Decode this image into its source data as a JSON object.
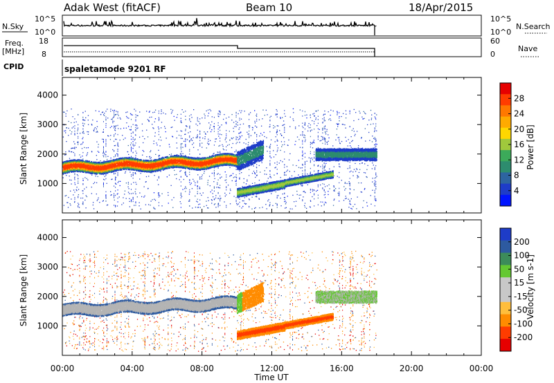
{
  "header": {
    "site": "Adak West (fitACF)",
    "beam": "Beam 10",
    "date": "18/Apr/2015"
  },
  "panels": {
    "nsky": {
      "label": "N.Sky",
      "ticks": [
        "10^5",
        "10^0"
      ],
      "right_label": "N.Search",
      "right_ticks": [
        "10^5",
        "10^0"
      ]
    },
    "freq": {
      "label_line1": "Freq.",
      "label_line2": "[MHz]",
      "ticks": [
        "18",
        "8"
      ],
      "right_label": "Nave",
      "right_ticks": [
        "60",
        "0"
      ]
    },
    "cpid": {
      "label": "CPID",
      "value": "spaletamode 9201 RF"
    }
  },
  "colors": {
    "power_scale": [
      "#0014ff",
      "#1e3cc8",
      "#2d64a0",
      "#2d8c6e",
      "#3caa5a",
      "#a0c83c",
      "#ffd700",
      "#ffaa00",
      "#ff7800",
      "#ff3c00",
      "#e60000"
    ],
    "velocity_scale": [
      "#e60000",
      "#ff3c00",
      "#ff8c00",
      "#ffbe3c",
      "#c8c8c8",
      "#c8c8c8",
      "#64c832",
      "#3c8c5a",
      "#2d5aa0",
      "#1e3cc8"
    ],
    "ground_scatter": "#b4b4b4"
  },
  "chart_data": [
    {
      "type": "heatmap",
      "name": "power",
      "ylabel": "Slant Range [km]",
      "yticks": [
        "1000",
        "2000",
        "3000",
        "4000"
      ],
      "ylim": [
        0,
        4600
      ],
      "colorbar": {
        "label": "Power [dB]",
        "ticks": [
          "4",
          "8",
          "12",
          "16",
          "20",
          "24",
          "28"
        ]
      },
      "bands": [
        {
          "t_start": 0.0,
          "t_end": 10.0,
          "r_low": 1350,
          "r_high": 1750,
          "value": 22
        },
        {
          "t_start": 10.0,
          "t_end": 11.5,
          "r_low": 1450,
          "r_high": 2100,
          "value": 8
        },
        {
          "t_start": 10.0,
          "t_end": 15.5,
          "r_low": 650,
          "r_high": 1200,
          "value": 14
        },
        {
          "t_start": 14.5,
          "t_end": 18.0,
          "r_low": 1800,
          "r_high": 2200,
          "value": 6
        }
      ]
    },
    {
      "type": "heatmap",
      "name": "velocity",
      "ylabel": "Slant Range [km]",
      "yticks": [
        "1000",
        "2000",
        "3000",
        "4000"
      ],
      "ylim": [
        0,
        4600
      ],
      "colorbar": {
        "label": "Velocity [m s-1]",
        "ticks": [
          "200",
          "100",
          "50",
          "15",
          "-15",
          "-50",
          "-100",
          "-200"
        ]
      },
      "xlabel": "Time UT",
      "xticks": [
        "00:00",
        "04:00",
        "08:00",
        "12:00",
        "16:00",
        "20:00",
        "00:00"
      ],
      "xlim": [
        0,
        24
      ]
    }
  ]
}
